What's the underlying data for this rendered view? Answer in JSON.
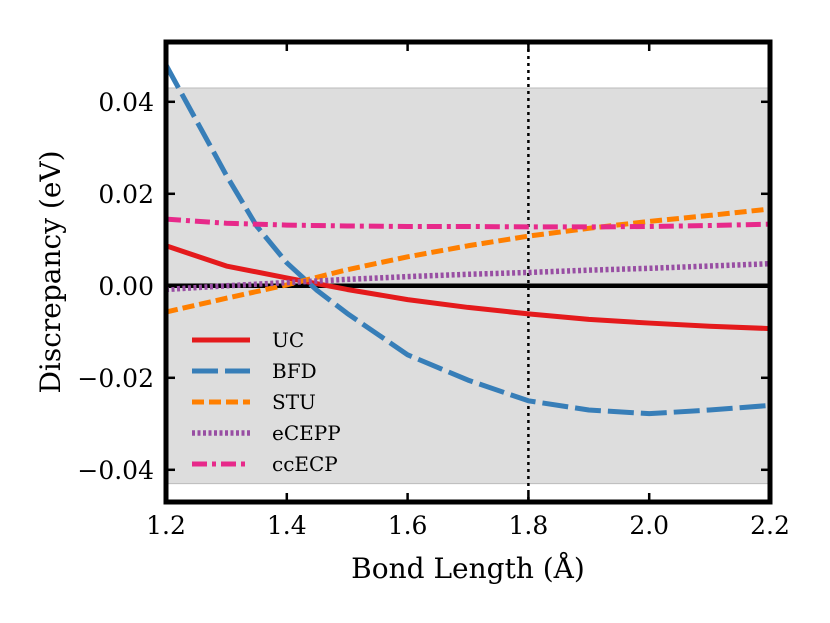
{
  "chart_data": {
    "type": "line",
    "xlabel": "Bond Length (Å)",
    "ylabel": "Discrepancy (eV)",
    "xlim": [
      1.2,
      2.2
    ],
    "ylim": [
      -0.047,
      0.053
    ],
    "xticks": [
      1.2,
      1.4,
      1.6,
      1.8,
      2.0,
      2.2
    ],
    "xtick_labels": [
      "1.2",
      "1.4",
      "1.6",
      "1.8",
      "2.0",
      "2.2"
    ],
    "yticks": [
      -0.04,
      -0.02,
      0.0,
      0.02,
      0.04
    ],
    "ytick_labels": [
      "−0.04",
      "−0.02",
      "0.00",
      "0.02",
      "0.04"
    ],
    "shaded_band": [
      -0.043,
      0.043
    ],
    "band_color": "#dddddd",
    "reference_line_y": 0.0,
    "vertical_marker_x": 1.8,
    "legend_position": "lower-left",
    "series": [
      {
        "name": "UC",
        "color": "#e41a1c",
        "style": "solid",
        "x": [
          1.2,
          1.3,
          1.4,
          1.5,
          1.6,
          1.7,
          1.8,
          1.9,
          2.0,
          2.1,
          2.2
        ],
        "y": [
          0.0087,
          0.0043,
          0.0017,
          -0.0008,
          -0.003,
          -0.0047,
          -0.0061,
          -0.0073,
          -0.0081,
          -0.0088,
          -0.0093
        ]
      },
      {
        "name": "BFD",
        "color": "#377eb8",
        "style": "longdash",
        "x": [
          1.2,
          1.25,
          1.3,
          1.35,
          1.4,
          1.45,
          1.5,
          1.6,
          1.7,
          1.8,
          1.9,
          2.0,
          2.1,
          2.2
        ],
        "y": [
          0.048,
          0.036,
          0.024,
          0.013,
          0.005,
          -0.001,
          -0.006,
          -0.015,
          -0.0205,
          -0.025,
          -0.027,
          -0.0278,
          -0.027,
          -0.026
        ]
      },
      {
        "name": "STU",
        "color": "#ff7f00",
        "style": "dashed",
        "x": [
          1.2,
          1.3,
          1.4,
          1.5,
          1.6,
          1.7,
          1.8,
          1.9,
          2.0,
          2.1,
          2.2
        ],
        "y": [
          -0.0057,
          -0.0027,
          0.0002,
          0.0035,
          0.0063,
          0.0087,
          0.0108,
          0.0125,
          0.014,
          0.0153,
          0.0167
        ]
      },
      {
        "name": "eCEPP",
        "color": "#984ea3",
        "style": "dotted",
        "x": [
          1.2,
          1.3,
          1.4,
          1.5,
          1.6,
          1.7,
          1.8,
          1.9,
          2.0,
          2.1,
          2.2
        ],
        "y": [
          -0.0008,
          0.0,
          0.0007,
          0.0014,
          0.002,
          0.0025,
          0.0029,
          0.0034,
          0.0038,
          0.0043,
          0.0048
        ]
      },
      {
        "name": "ccECP",
        "color": "#e7298a",
        "style": "dashdot",
        "x": [
          1.2,
          1.3,
          1.4,
          1.5,
          1.6,
          1.7,
          1.8,
          1.9,
          2.0,
          2.1,
          2.2
        ],
        "y": [
          0.0145,
          0.0136,
          0.0132,
          0.013,
          0.0129,
          0.0129,
          0.0128,
          0.0128,
          0.0129,
          0.0131,
          0.0134
        ]
      }
    ]
  }
}
